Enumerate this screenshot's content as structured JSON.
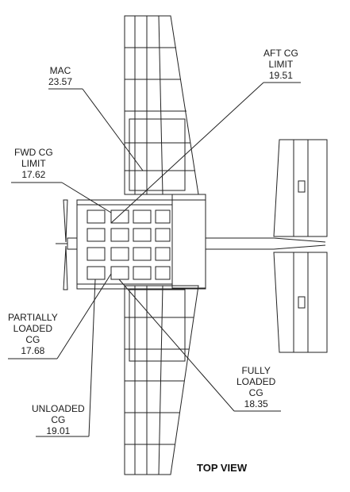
{
  "view_title": "TOP VIEW",
  "labels": {
    "mac": {
      "lines": [
        "MAC"
      ],
      "value": "23.57"
    },
    "aft_cg_limit": {
      "lines": [
        "AFT CG",
        "LIMIT"
      ],
      "value": "19.51"
    },
    "fwd_cg_limit": {
      "lines": [
        "FWD CG",
        "LIMIT"
      ],
      "value": "17.62"
    },
    "partially_loaded_cg": {
      "lines": [
        "PARTIALLY",
        "LOADED",
        "CG"
      ],
      "value": "17.68"
    },
    "fully_loaded_cg": {
      "lines": [
        "FULLY",
        "LOADED",
        "CG"
      ],
      "value": "18.35"
    },
    "unloaded_cg": {
      "lines": [
        "UNLOADED",
        "CG"
      ],
      "value": "19.01"
    }
  },
  "colors": {
    "line": "#222222",
    "background": "#ffffff"
  }
}
